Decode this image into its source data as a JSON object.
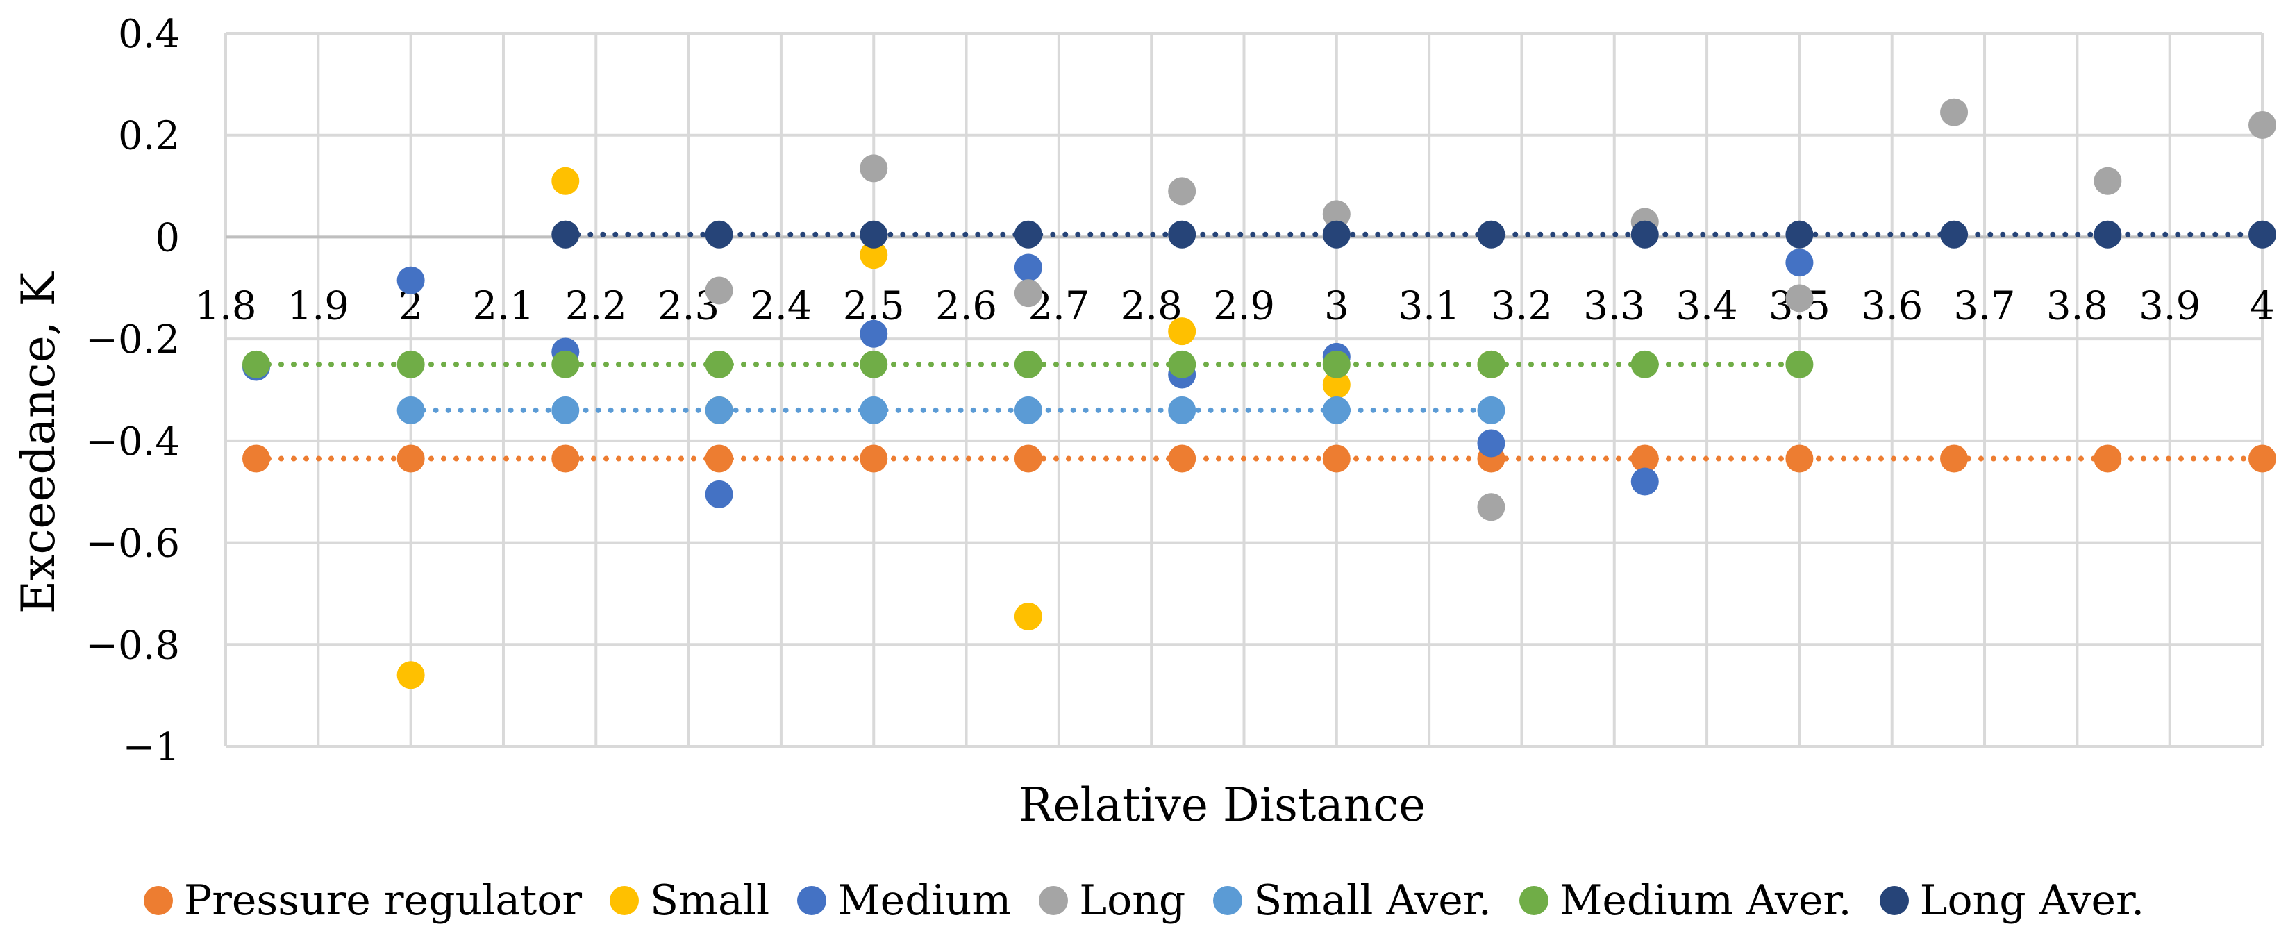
{
  "chart_data": {
    "type": "scatter",
    "title": "",
    "xlabel": "Relative Distance",
    "ylabel": "Exceedance, K",
    "xlim": [
      1.8,
      4.0
    ],
    "ylim": [
      -1.0,
      0.4
    ],
    "x_ticks": [
      1.8,
      1.9,
      2.0,
      2.1,
      2.2,
      2.3,
      2.4,
      2.5,
      2.6,
      2.7,
      2.8,
      2.9,
      3.0,
      3.1,
      3.2,
      3.3,
      3.4,
      3.5,
      3.6,
      3.7,
      3.8,
      3.9,
      4.0
    ],
    "x_tick_labels": [
      "1.8",
      "1.9",
      "2",
      "2.1",
      "2.2",
      "2.3",
      "2.4",
      "2.5",
      "2.6",
      "2.7",
      "2.8",
      "2.9",
      "3",
      "3.1",
      "3.2",
      "3.3",
      "3.4",
      "3.5",
      "3.6",
      "3.7",
      "3.8",
      "3.9",
      "4"
    ],
    "y_ticks": [
      0.4,
      0.2,
      0.0,
      -0.2,
      -0.4,
      -0.6,
      -0.8,
      -1.0
    ],
    "y_tick_labels": [
      "0.4",
      "0.2",
      "0",
      "−0.2",
      "−0.4",
      "−0.6",
      "−0.8",
      "−1"
    ],
    "grid": true,
    "legend_position": "bottom",
    "series": [
      {
        "name": "Pressure regulator",
        "color": "#ED7D31",
        "style": "points+dotted-trend",
        "x": [
          1.833,
          2.0,
          2.167,
          2.333,
          2.5,
          2.667,
          2.833,
          3.0,
          3.167,
          3.333,
          3.5,
          3.667,
          3.833,
          4.0
        ],
        "y": [
          -0.435,
          -0.435,
          -0.435,
          -0.435,
          -0.435,
          -0.435,
          -0.435,
          -0.435,
          -0.435,
          -0.435,
          -0.435,
          -0.435,
          -0.435,
          -0.435
        ]
      },
      {
        "name": "Small",
        "color": "#FFC000",
        "style": "points",
        "x": [
          2.0,
          2.167,
          2.333,
          2.5,
          2.667,
          2.833,
          3.0,
          3.167
        ],
        "y": [
          -0.86,
          0.11,
          -0.34,
          -0.035,
          -0.745,
          -0.185,
          -0.29,
          -0.25
        ]
      },
      {
        "name": "Medium",
        "color": "#4472C4",
        "style": "points",
        "x": [
          1.833,
          2.0,
          2.167,
          2.333,
          2.5,
          2.667,
          2.833,
          3.0,
          3.167,
          3.333,
          3.5
        ],
        "y": [
          -0.255,
          -0.085,
          -0.225,
          -0.505,
          -0.19,
          -0.06,
          -0.27,
          -0.235,
          -0.405,
          -0.48,
          -0.05
        ]
      },
      {
        "name": "Long",
        "color": "#A5A5A5",
        "style": "points",
        "x": [
          2.167,
          2.333,
          2.5,
          2.667,
          2.833,
          3.0,
          3.167,
          3.333,
          3.5,
          3.667,
          3.833,
          4.0
        ],
        "y": [
          0.005,
          -0.105,
          0.135,
          -0.11,
          0.09,
          0.045,
          -0.53,
          0.03,
          -0.12,
          0.245,
          0.11,
          0.22
        ]
      },
      {
        "name": "Small Aver.",
        "color": "#5B9BD5",
        "style": "points+dotted-trend",
        "x": [
          2.0,
          2.167,
          2.333,
          2.5,
          2.667,
          2.833,
          3.0,
          3.167
        ],
        "y": [
          -0.34,
          -0.34,
          -0.34,
          -0.34,
          -0.34,
          -0.34,
          -0.34,
          -0.34
        ]
      },
      {
        "name": "Medium Aver.",
        "color": "#70AD47",
        "style": "points+dotted-trend",
        "x": [
          1.833,
          2.0,
          2.167,
          2.333,
          2.5,
          2.667,
          2.833,
          3.0,
          3.167,
          3.333,
          3.5
        ],
        "y": [
          -0.25,
          -0.25,
          -0.25,
          -0.25,
          -0.25,
          -0.25,
          -0.25,
          -0.25,
          -0.25,
          -0.25,
          -0.25
        ]
      },
      {
        "name": "Long Aver.",
        "color": "#264478",
        "style": "points+dotted-trend",
        "x": [
          2.167,
          2.333,
          2.5,
          2.667,
          2.833,
          3.0,
          3.167,
          3.333,
          3.5,
          3.667,
          3.833,
          4.0
        ],
        "y": [
          0.005,
          0.005,
          0.005,
          0.005,
          0.005,
          0.005,
          0.005,
          0.005,
          0.005,
          0.005,
          0.005,
          0.005
        ]
      }
    ]
  }
}
